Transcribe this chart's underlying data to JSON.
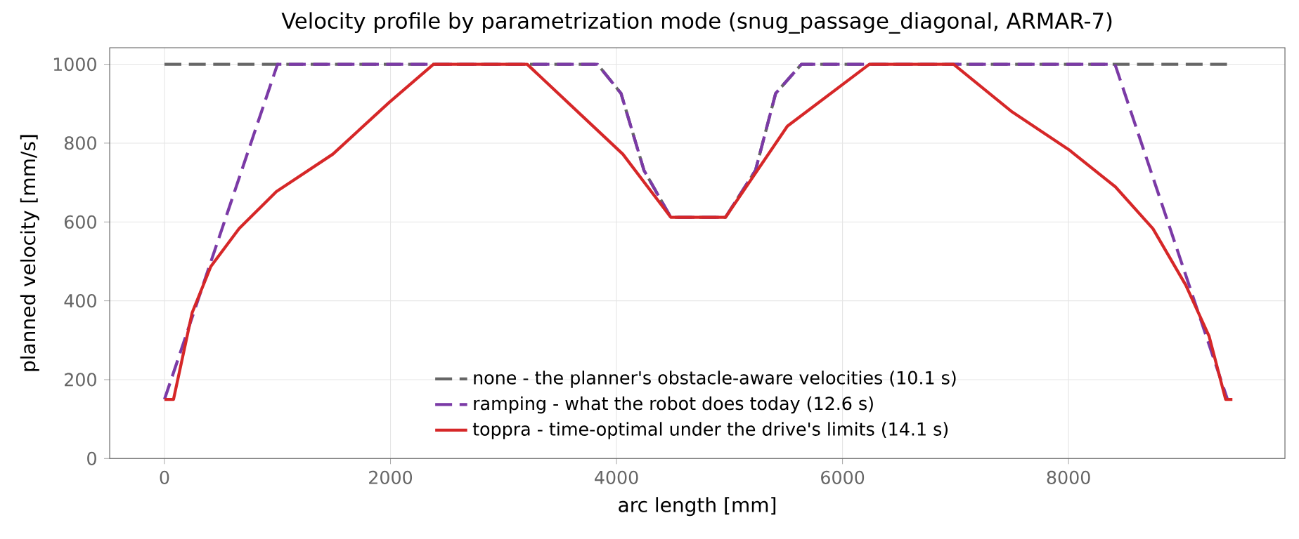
{
  "chart_data": {
    "type": "line",
    "title": "Velocity profile by parametrization mode  (snug_passage_diagonal, ARMAR-7)",
    "xlabel": "arc length [mm]",
    "ylabel": "planned velocity [mm/s]",
    "xlim": [
      -485,
      9915
    ],
    "ylim": [
      0,
      1042
    ],
    "xticks": [
      0,
      2000,
      4000,
      6000,
      8000
    ],
    "yticks": [
      0,
      200,
      400,
      600,
      800,
      1000
    ],
    "grid": true,
    "legend": "bottom",
    "marker": "none",
    "series": [
      {
        "name": "none - the planner's obstacle-aware velocities  (10.1 s)",
        "color": "#666666",
        "line_style": "dashed",
        "x": [
          0,
          3832,
          4040,
          4243,
          4480,
          4965,
          5230,
          5408,
          5636,
          9406
        ],
        "values": [
          1000,
          1000,
          926,
          731,
          612,
          612,
          731,
          926,
          1000,
          1000
        ]
      },
      {
        "name": "ramping - what the robot does today  (12.6 s)",
        "color": "#7b3aa6",
        "line_style": "dashed",
        "x": [
          0,
          1000,
          3832,
          4040,
          4243,
          4480,
          4965,
          5230,
          5408,
          5636,
          8411,
          9406
        ],
        "values": [
          150,
          1000,
          1000,
          926,
          731,
          612,
          612,
          731,
          926,
          1000,
          1000,
          150
        ]
      },
      {
        "name": "toppra - time-optimal under the drive's limits  (14.1 s)",
        "color": "#d62728",
        "line_style": "solid",
        "x": [
          0,
          80,
          245,
          410,
          660,
          990,
          1490,
          1987,
          2380,
          3210,
          3770,
          4056,
          4480,
          4965,
          5512,
          6237,
          6983,
          7502,
          8000,
          8415,
          8747,
          9037,
          9244,
          9390,
          9450
        ],
        "values": [
          150,
          150,
          370,
          487,
          583,
          677,
          772,
          903,
          1000,
          1000,
          849,
          772,
          612,
          612,
          843,
          1000,
          1000,
          879,
          784,
          689,
          583,
          440,
          310,
          150,
          150
        ]
      }
    ]
  }
}
